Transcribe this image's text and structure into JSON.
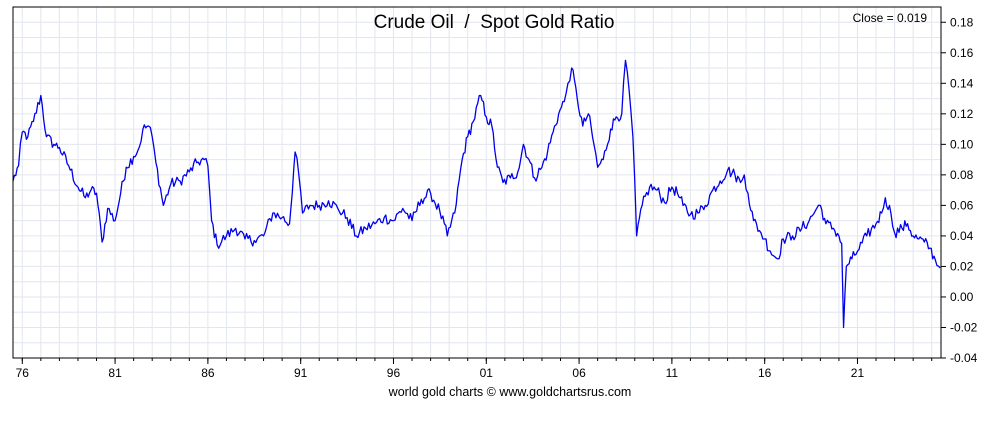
{
  "chart_data": {
    "type": "line",
    "title": "Crude Oil  /  Spot Gold Ratio",
    "close_label": "Close = 0.019",
    "credit": "world gold charts © www.goldchartsrus.com",
    "xlabel": "",
    "ylabel": "",
    "x_range": [
      1975.5,
      2025.5
    ],
    "ylim": [
      -0.04,
      0.19
    ],
    "y_ticks": [
      -0.04,
      -0.02,
      0.0,
      0.02,
      0.04,
      0.06,
      0.08,
      0.1,
      0.12,
      0.14,
      0.16,
      0.18
    ],
    "y_tick_labels": [
      "-0.04",
      "-0.02",
      "0.00",
      "0.02",
      "0.04",
      "0.06",
      "0.08",
      "0.10",
      "0.12",
      "0.14",
      "0.16",
      "0.18"
    ],
    "x_ticks": [
      1976,
      1981,
      1986,
      1991,
      1996,
      2001,
      2006,
      2011,
      2016,
      2021
    ],
    "x_tick_labels": [
      "76",
      "81",
      "86",
      "91",
      "96",
      "01",
      "06",
      "11",
      "16",
      "21"
    ],
    "x_minor_step": 1,
    "grid": true,
    "line_color": "#0000ee",
    "series": [
      {
        "x": [
          1975.5,
          1975.8,
          1976.0,
          1976.3,
          1976.6,
          1977.0,
          1977.3,
          1977.7,
          1978.0,
          1978.5,
          1979.0,
          1979.4,
          1979.7,
          1980.0,
          1980.3,
          1980.6,
          1981.0,
          1981.3,
          1981.6,
          1982.0,
          1982.3,
          1982.5,
          1982.8,
          1983.0,
          1983.2,
          1983.6,
          1984.0,
          1984.5,
          1985.0,
          1985.4,
          1985.8,
          1986.0,
          1986.2,
          1986.5,
          1987.0,
          1987.5,
          1988.0,
          1988.5,
          1989.0,
          1989.5,
          1990.0,
          1990.4,
          1990.7,
          1990.9,
          1991.1,
          1991.5,
          1992.0,
          1992.5,
          1993.0,
          1993.5,
          1994.0,
          1994.5,
          1995.0,
          1995.5,
          1996.0,
          1996.5,
          1997.0,
          1997.5,
          1998.0,
          1998.5,
          1998.9,
          1999.3,
          1999.7,
          2000.0,
          2000.3,
          2000.7,
          2001.0,
          2001.3,
          2001.6,
          2001.9,
          2002.3,
          2002.7,
          2003.0,
          2003.3,
          2003.6,
          2004.0,
          2004.3,
          2004.6,
          2004.9,
          2005.2,
          2005.4,
          2005.6,
          2005.9,
          2006.2,
          2006.5,
          2006.8,
          2007.0,
          2007.3,
          2007.7,
          2008.0,
          2008.3,
          2008.5,
          2008.7,
          2008.9,
          2009.1,
          2009.4,
          2009.8,
          2010.2,
          2010.6,
          2011.0,
          2011.3,
          2011.6,
          2012.0,
          2012.4,
          2012.8,
          2013.2,
          2013.6,
          2014.0,
          2014.4,
          2014.7,
          2014.9,
          2015.1,
          2015.4,
          2015.8,
          2016.0,
          2016.3,
          2016.7,
          2017.0,
          2017.5,
          2018.0,
          2018.4,
          2018.8,
          2019.0,
          2019.3,
          2019.7,
          2020.0,
          2020.15,
          2020.25,
          2020.4,
          2020.7,
          2021.0,
          2021.5,
          2022.0,
          2022.3,
          2022.5,
          2022.8,
          2023.0,
          2023.4,
          2023.7,
          2024.0,
          2024.3,
          2024.6,
          2024.9,
          2025.2,
          2025.45
        ],
        "y": [
          0.076,
          0.086,
          0.108,
          0.105,
          0.115,
          0.132,
          0.105,
          0.1,
          0.098,
          0.086,
          0.072,
          0.065,
          0.07,
          0.068,
          0.036,
          0.058,
          0.05,
          0.068,
          0.085,
          0.092,
          0.098,
          0.11,
          0.112,
          0.105,
          0.088,
          0.06,
          0.074,
          0.076,
          0.082,
          0.088,
          0.09,
          0.086,
          0.05,
          0.034,
          0.04,
          0.045,
          0.038,
          0.037,
          0.04,
          0.055,
          0.052,
          0.048,
          0.095,
          0.08,
          0.055,
          0.06,
          0.06,
          0.063,
          0.058,
          0.052,
          0.04,
          0.045,
          0.048,
          0.052,
          0.05,
          0.058,
          0.05,
          0.064,
          0.068,
          0.056,
          0.04,
          0.055,
          0.09,
          0.105,
          0.115,
          0.132,
          0.118,
          0.112,
          0.085,
          0.075,
          0.078,
          0.082,
          0.1,
          0.09,
          0.078,
          0.085,
          0.095,
          0.108,
          0.12,
          0.128,
          0.14,
          0.15,
          0.13,
          0.112,
          0.12,
          0.1,
          0.085,
          0.09,
          0.11,
          0.118,
          0.12,
          0.155,
          0.135,
          0.105,
          0.04,
          0.06,
          0.072,
          0.07,
          0.062,
          0.072,
          0.068,
          0.06,
          0.054,
          0.055,
          0.06,
          0.07,
          0.076,
          0.083,
          0.08,
          0.075,
          0.08,
          0.068,
          0.05,
          0.042,
          0.038,
          0.03,
          0.025,
          0.038,
          0.04,
          0.045,
          0.05,
          0.058,
          0.06,
          0.048,
          0.045,
          0.04,
          0.035,
          -0.02,
          0.02,
          0.025,
          0.03,
          0.04,
          0.048,
          0.055,
          0.065,
          0.055,
          0.042,
          0.045,
          0.048,
          0.04,
          0.038,
          0.036,
          0.032,
          0.024,
          0.019
        ]
      }
    ]
  }
}
